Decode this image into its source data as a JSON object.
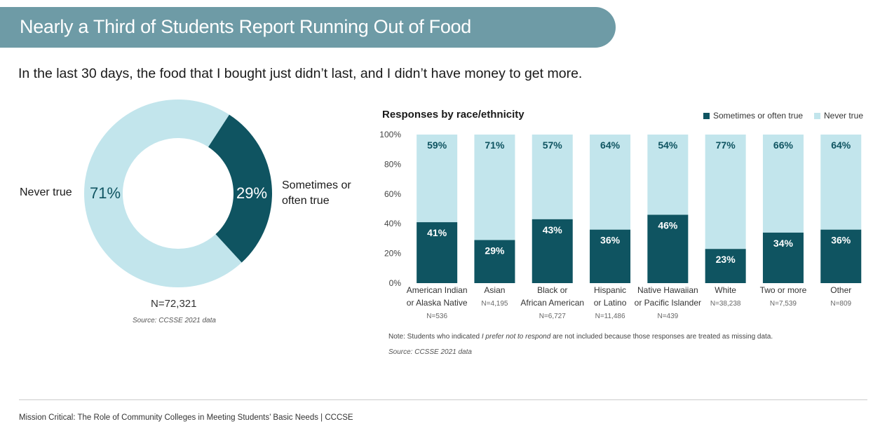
{
  "header": {
    "title": "Nearly a Third of Students Report Running Out of Food",
    "subtitle": "In the last 30 days, the food that I bought just didn’t last, and I didn’t have money to get more."
  },
  "colors": {
    "dark": "#0f5461",
    "light": "#c2e5ec",
    "banner": "#6e9ba6"
  },
  "footer": {
    "text": "Mission Critical: The Role of Community Colleges in Meeting Students’ Basic Needs | CCCSE"
  },
  "chart_data": [
    {
      "type": "pie",
      "categories": [
        "Never true",
        "Sometimes or often true"
      ],
      "values": [
        71,
        29
      ],
      "value_labels": [
        "71%",
        "29%"
      ],
      "label_never": "Never true",
      "label_sometimes": "Sometimes or often true",
      "n_label": "N=72,321",
      "source": "Source: CCSSE 2021 data"
    },
    {
      "type": "bar",
      "stacked": true,
      "title": "Responses by race/ethnicity",
      "categories": [
        {
          "line1": "American Indian",
          "line2": "or Alaska Native",
          "n": "N=536"
        },
        {
          "line1": "Asian",
          "line2": "",
          "n": "N=4,195"
        },
        {
          "line1": "Black or",
          "line2": "African American",
          "n": "N=6,727"
        },
        {
          "line1": "Hispanic",
          "line2": "or Latino",
          "n": "N=11,486"
        },
        {
          "line1": "Native Hawaiian",
          "line2": "or Pacific Islander",
          "n": "N=439"
        },
        {
          "line1": "White",
          "line2": "",
          "n": "N=38,238"
        },
        {
          "line1": "Two or more",
          "line2": "",
          "n": "N=7,539"
        },
        {
          "line1": "Other",
          "line2": "",
          "n": "N=809"
        }
      ],
      "series": [
        {
          "name": "Sometimes or often true",
          "values": [
            41,
            29,
            43,
            36,
            46,
            23,
            34,
            36
          ]
        },
        {
          "name": "Never true",
          "values": [
            59,
            71,
            57,
            64,
            54,
            77,
            66,
            64
          ]
        }
      ],
      "ylim": [
        0,
        100
      ],
      "yticks": [
        "0%",
        "20%",
        "40%",
        "60%",
        "80%",
        "100%"
      ],
      "legend_position": "top-right",
      "note_prefix": "Note: Students who indicated",
      "note_italic": "I prefer not to respond",
      "note_suffix": "are not included because those responses are treated as missing data.",
      "source": "Source: CCSSE 2021 data"
    }
  ]
}
